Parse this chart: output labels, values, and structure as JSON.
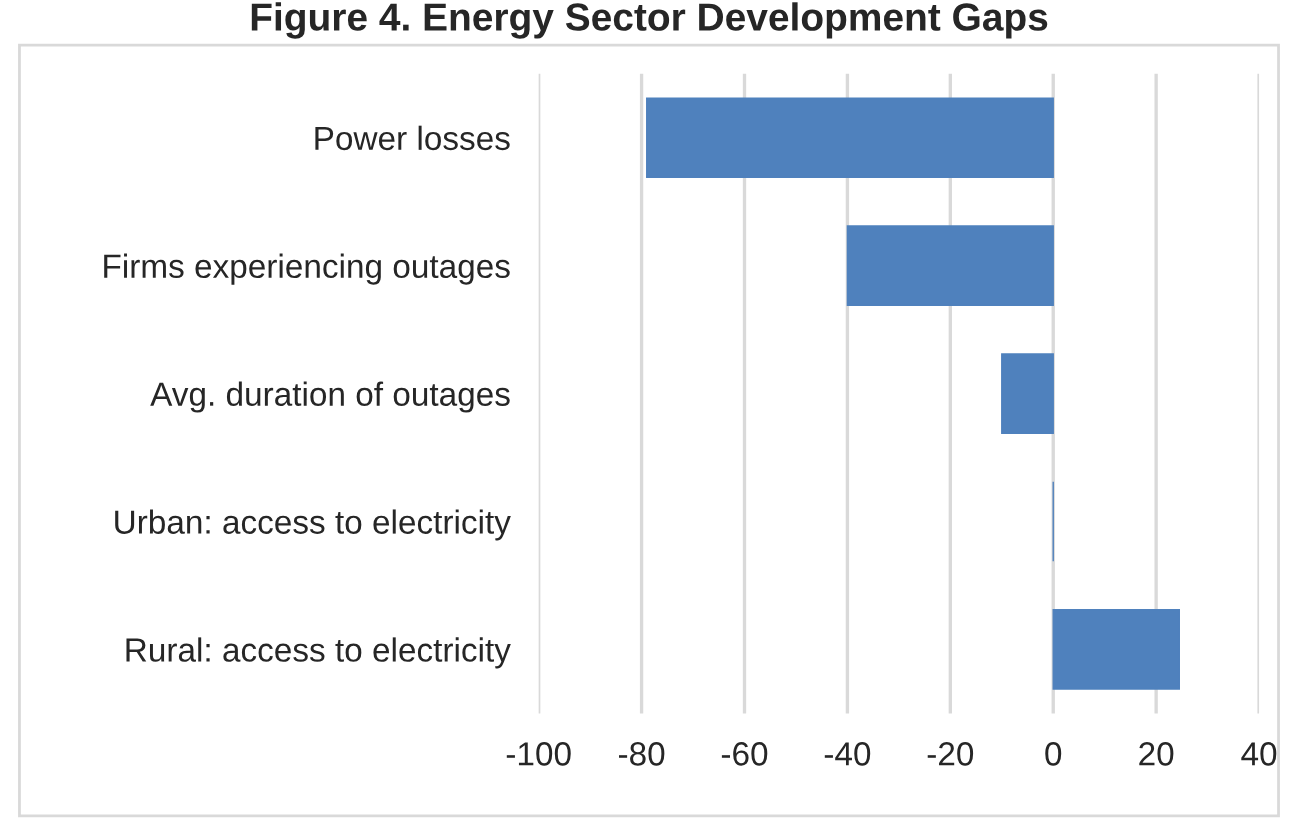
{
  "chart_data": {
    "type": "bar",
    "orientation": "horizontal",
    "title": "Figure 4. Energy Sector Development Gaps",
    "categories": [
      "Power losses",
      "Firms experiencing outages",
      "Avg. duration of outages",
      "Urban: access to electricity",
      "Rural: access to electricity"
    ],
    "values": [
      -79,
      -40,
      -10,
      0,
      24.5
    ],
    "color": "#4f81bd",
    "xlim": [
      -100,
      40
    ],
    "xticks": [
      -100,
      -80,
      -60,
      -40,
      -20,
      0,
      20,
      40
    ],
    "grid": "x",
    "legend": false
  }
}
